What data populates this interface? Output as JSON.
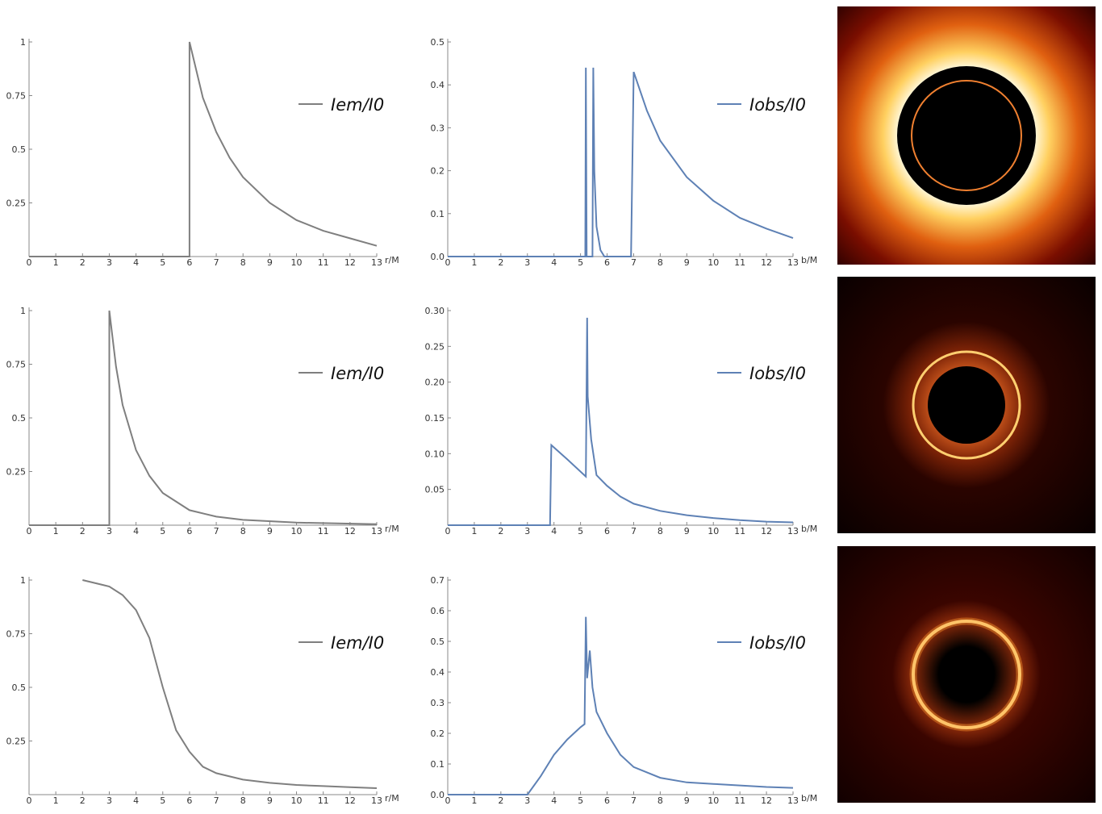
{
  "chart_data": [
    {
      "type": "line",
      "xlabel": "r/M",
      "xlim": [
        0,
        13
      ],
      "ylim": [
        0,
        1
      ],
      "xticks": [
        0,
        1,
        2,
        3,
        4,
        5,
        6,
        7,
        8,
        9,
        10,
        11,
        12,
        13
      ],
      "yticks": [
        0.25,
        0.5,
        0.75,
        1
      ],
      "x": [
        0,
        6,
        6,
        6.5,
        7,
        7.5,
        8,
        9,
        10,
        11,
        12,
        13
      ],
      "series": [
        {
          "name": "Iem/I0",
          "color": "#7f7f7f",
          "values": [
            0,
            0,
            1,
            0.74,
            0.58,
            0.46,
            0.37,
            0.25,
            0.17,
            0.12,
            0.085,
            0.05
          ]
        }
      ]
    },
    {
      "type": "line",
      "xlabel": "b/M",
      "xlim": [
        0,
        13
      ],
      "ylim": [
        0,
        0.5
      ],
      "xticks": [
        0,
        1,
        2,
        3,
        4,
        5,
        6,
        7,
        8,
        9,
        10,
        11,
        12,
        13
      ],
      "yticks": [
        {
          "value": 0,
          "label": "0.0"
        },
        0.1,
        0.2,
        0.3,
        0.4,
        0.5
      ],
      "x": [
        0,
        5.18,
        5.2,
        5.23,
        5.45,
        5.48,
        5.52,
        5.6,
        5.75,
        5.9,
        6.9,
        7.0,
        7.5,
        8,
        9,
        10,
        11,
        12,
        13
      ],
      "series": [
        {
          "name": "Iobs/I0",
          "color": "#5e81b5",
          "values": [
            0,
            0,
            0.44,
            0,
            0,
            0.44,
            0.2,
            0.07,
            0.015,
            0,
            0,
            0.43,
            0.34,
            0.27,
            0.185,
            0.13,
            0.09,
            0.065,
            0.043
          ]
        }
      ]
    },
    {
      "type": "line",
      "xlabel": "r/M",
      "xlim": [
        0,
        13
      ],
      "ylim": [
        0,
        1
      ],
      "xticks": [
        0,
        1,
        2,
        3,
        4,
        5,
        6,
        7,
        8,
        9,
        10,
        11,
        12,
        13
      ],
      "yticks": [
        0.25,
        0.5,
        0.75,
        1
      ],
      "x": [
        0,
        3,
        3,
        3.25,
        3.5,
        4,
        4.5,
        5,
        6,
        7,
        8,
        10,
        13
      ],
      "series": [
        {
          "name": "Iem/I0",
          "color": "#7f7f7f",
          "values": [
            0,
            0,
            1,
            0.74,
            0.56,
            0.35,
            0.23,
            0.15,
            0.07,
            0.04,
            0.025,
            0.012,
            0.005
          ]
        }
      ]
    },
    {
      "type": "line",
      "xlabel": "b/M",
      "xlim": [
        0,
        13
      ],
      "ylim": [
        0,
        0.3
      ],
      "xticks": [
        0,
        1,
        2,
        3,
        4,
        5,
        6,
        7,
        8,
        9,
        10,
        11,
        12,
        13
      ],
      "yticks": [
        0.05,
        {
          "value": 0.1,
          "label": "0.10"
        },
        0.15,
        {
          "value": 0.2,
          "label": "0.20"
        },
        0.25,
        {
          "value": 0.3,
          "label": "0.30"
        }
      ],
      "x": [
        0,
        3.85,
        3.9,
        4.5,
        5.2,
        5.25,
        5.27,
        5.4,
        5.6,
        6,
        6.5,
        7,
        8,
        9,
        10,
        11,
        12,
        13
      ],
      "series": [
        {
          "name": "Iobs/I0",
          "color": "#5e81b5",
          "values": [
            0,
            0,
            0.112,
            0.092,
            0.068,
            0.29,
            0.18,
            0.12,
            0.07,
            0.055,
            0.04,
            0.03,
            0.02,
            0.014,
            0.01,
            0.007,
            0.005,
            0.004
          ]
        }
      ]
    },
    {
      "type": "line",
      "xlabel": "r/M",
      "xlim": [
        0,
        13
      ],
      "ylim": [
        0,
        1
      ],
      "xticks": [
        0,
        1,
        2,
        3,
        4,
        5,
        6,
        7,
        8,
        9,
        10,
        11,
        12,
        13
      ],
      "yticks": [
        0.25,
        0.5,
        0.75,
        1
      ],
      "x": [
        2,
        3,
        3.5,
        4,
        4.5,
        5,
        5.5,
        6,
        6.5,
        7,
        8,
        9,
        10,
        11,
        12,
        13
      ],
      "series": [
        {
          "name": "Iem/I0",
          "color": "#7f7f7f",
          "values": [
            1,
            0.97,
            0.93,
            0.86,
            0.73,
            0.5,
            0.3,
            0.2,
            0.13,
            0.1,
            0.07,
            0.055,
            0.045,
            0.04,
            0.035,
            0.03
          ]
        }
      ]
    },
    {
      "type": "line",
      "xlabel": "b/M",
      "xlim": [
        0,
        13
      ],
      "ylim": [
        0,
        0.7
      ],
      "xticks": [
        0,
        1,
        2,
        3,
        4,
        5,
        6,
        7,
        8,
        9,
        10,
        11,
        12,
        13
      ],
      "yticks": [
        {
          "value": 0,
          "label": "0.0"
        },
        0.1,
        0.2,
        0.3,
        0.4,
        0.5,
        0.6,
        0.7
      ],
      "x": [
        0,
        3,
        3.5,
        4,
        4.5,
        5,
        5.15,
        5.2,
        5.25,
        5.35,
        5.45,
        5.6,
        6,
        6.5,
        7,
        8,
        9,
        10,
        11,
        12,
        13
      ],
      "series": [
        {
          "name": "Iobs/I0",
          "color": "#5e81b5",
          "values": [
            0,
            0,
            0.06,
            0.13,
            0.18,
            0.22,
            0.23,
            0.58,
            0.38,
            0.47,
            0.35,
            0.27,
            0.2,
            0.13,
            0.09,
            0.055,
            0.04,
            0.035,
            0.03,
            0.025,
            0.022
          ]
        }
      ]
    }
  ]
}
